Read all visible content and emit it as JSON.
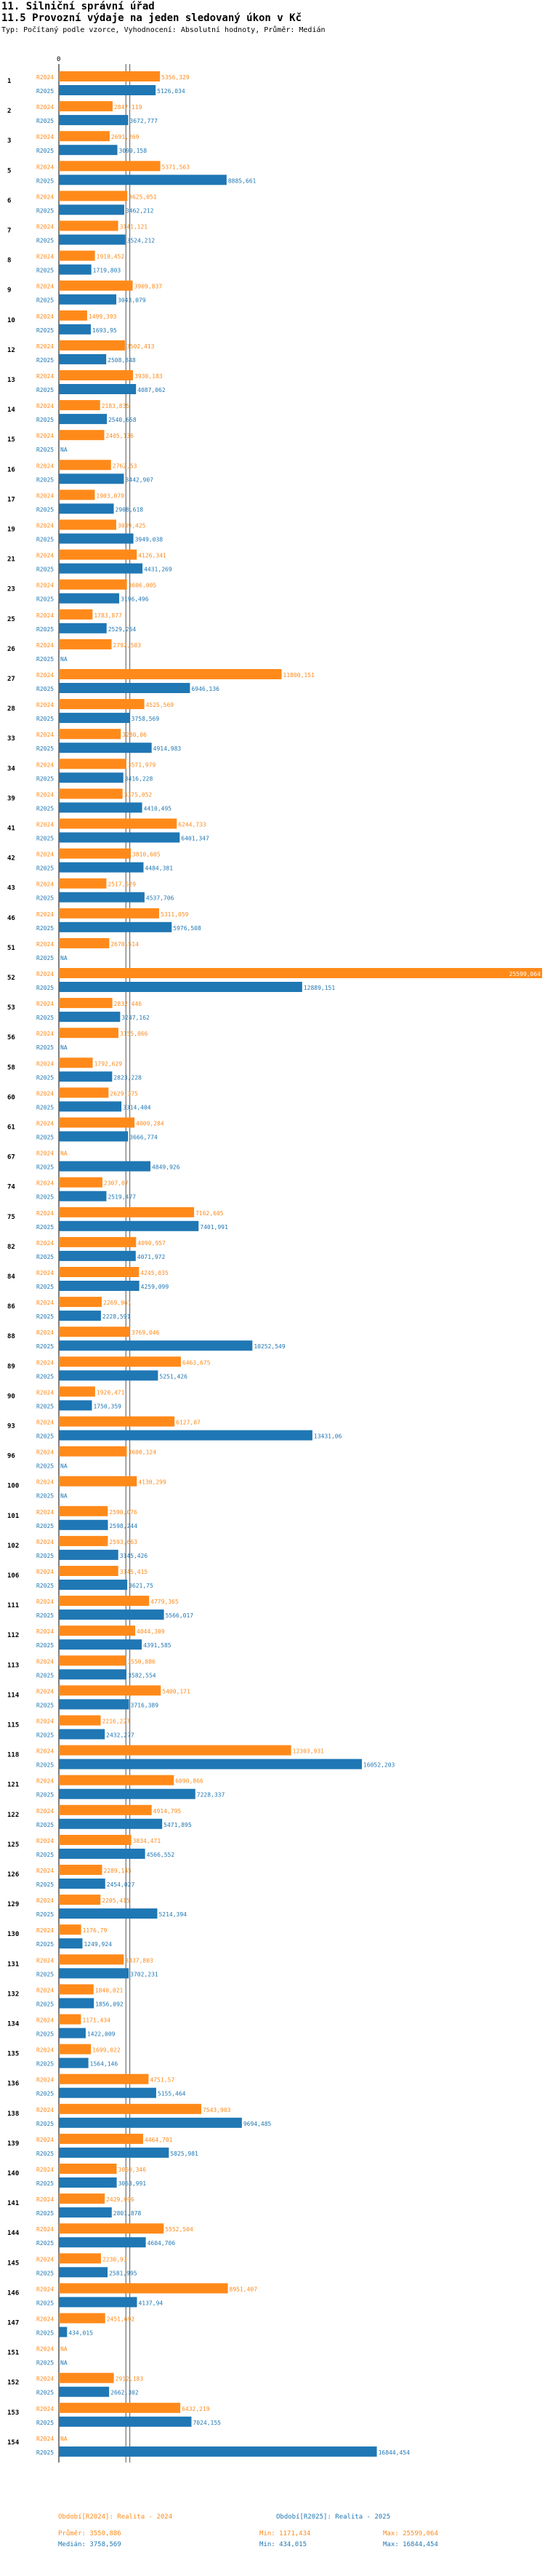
{
  "header": {
    "title1": "11. Silniční správní úřad",
    "title2": "11.5 Provozní výdaje na jeden sledovaný úkon v Kč",
    "subtitle": "Typ: Počítaný podle vzorce, Vyhodnocení: Absolutní hodnoty, Průměr: Medián"
  },
  "colors": {
    "series2024": "#ff8a1a",
    "series2025": "#1f77b4",
    "guide": "#555555"
  },
  "legend": {
    "s2024_title": "Období[R2024]: Realita - 2024",
    "s2025_title": "Období[R2025]: Realita - 2025",
    "s2024_mean": "Průměr: 3550,886",
    "s2024_min": "Min: 1171,434",
    "s2024_max": "Max: 25599,064",
    "s2025_median": "Medián: 3758,569",
    "s2025_min": "Min: 434,015",
    "s2025_max": "Max: 16844,454"
  },
  "chart_data": {
    "type": "bar",
    "orientation": "horizontal",
    "axis_zero_label": "0",
    "series_names": [
      "R2024",
      "R2025"
    ],
    "xlim": [
      0,
      25599.064
    ],
    "reference_lines": [
      3550.886,
      3758.569
    ],
    "rows": [
      {
        "id": "1",
        "r2024": "5356,329",
        "r2025": "5126,034"
      },
      {
        "id": "2",
        "r2024": "2847,119",
        "r2025": "3672,777"
      },
      {
        "id": "3",
        "r2024": "2691,269",
        "r2025": "3099,158"
      },
      {
        "id": "5",
        "r2024": "5371,563",
        "r2025": "8885,661"
      },
      {
        "id": "6",
        "r2024": "3625,051",
        "r2025": "3462,212"
      },
      {
        "id": "7",
        "r2024": "3141,121",
        "r2025": "3524,212"
      },
      {
        "id": "8",
        "r2024": "1910,452",
        "r2025": "1719,803"
      },
      {
        "id": "9",
        "r2024": "3909,837",
        "r2025": "3043,079"
      },
      {
        "id": "10",
        "r2024": "1499,393",
        "r2025": "1693,95"
      },
      {
        "id": "12",
        "r2024": "3502,413",
        "r2025": "2508,848"
      },
      {
        "id": "13",
        "r2024": "3930,183",
        "r2025": "4087,062"
      },
      {
        "id": "14",
        "r2024": "2183,835",
        "r2025": "2540,658"
      },
      {
        "id": "15",
        "r2024": "2405,136",
        "r2025": "NA"
      },
      {
        "id": "16",
        "r2024": "2762,53",
        "r2025": "3442,907"
      },
      {
        "id": "17",
        "r2024": "1903,079",
        "r2025": "2908,618"
      },
      {
        "id": "19",
        "r2024": "3039,425",
        "r2025": "3949,038"
      },
      {
        "id": "21",
        "r2024": "4126,341",
        "r2025": "4431,269"
      },
      {
        "id": "23",
        "r2024": "3606,005",
        "r2025": "3196,496"
      },
      {
        "id": "25",
        "r2024": "1783,877",
        "r2025": "2529,264"
      },
      {
        "id": "26",
        "r2024": "2792,503",
        "r2025": "NA"
      },
      {
        "id": "27",
        "r2024": "11800,151",
        "r2025": "6946,136"
      },
      {
        "id": "28",
        "r2024": "4525,569",
        "r2025": "3758,569"
      },
      {
        "id": "33",
        "r2024": "3280,06",
        "r2025": "4914,983"
      },
      {
        "id": "34",
        "r2024": "3571,979",
        "r2025": "3416,228"
      },
      {
        "id": "39",
        "r2024": "3375,052",
        "r2025": "4410,495"
      },
      {
        "id": "41",
        "r2024": "6244,733",
        "r2025": "6401,347"
      },
      {
        "id": "42",
        "r2024": "3810,605",
        "r2025": "4484,381"
      },
      {
        "id": "43",
        "r2024": "2517,529",
        "r2025": "4537,706"
      },
      {
        "id": "46",
        "r2024": "5311,059",
        "r2025": "5976,508"
      },
      {
        "id": "51",
        "r2024": "2670,514",
        "r2025": "NA"
      },
      {
        "id": "52",
        "r2024": "25599,064",
        "r2025": "12889,151"
      },
      {
        "id": "53",
        "r2024": "2832,446",
        "r2025": "3247,162"
      },
      {
        "id": "56",
        "r2024": "3155,066",
        "r2025": "NA"
      },
      {
        "id": "58",
        "r2024": "1792,629",
        "r2025": "2823,228"
      },
      {
        "id": "60",
        "r2024": "2629,375",
        "r2025": "3314,404"
      },
      {
        "id": "61",
        "r2024": "4009,284",
        "r2025": "3666,774"
      },
      {
        "id": "67",
        "r2024": "NA",
        "r2025": "4849,926"
      },
      {
        "id": "74",
        "r2024": "2307,07",
        "r2025": "2519,477"
      },
      {
        "id": "75",
        "r2024": "7162,605",
        "r2025": "7401,991"
      },
      {
        "id": "82",
        "r2024": "4090,957",
        "r2025": "4071,972"
      },
      {
        "id": "84",
        "r2024": "4245,035",
        "r2025": "4259,099"
      },
      {
        "id": "86",
        "r2024": "2269,961",
        "r2025": "2228,591"
      },
      {
        "id": "88",
        "r2024": "3769,046",
        "r2025": "10252,549"
      },
      {
        "id": "89",
        "r2024": "6463,675",
        "r2025": "5251,426"
      },
      {
        "id": "90",
        "r2024": "1920,471",
        "r2025": "1750,359"
      },
      {
        "id": "93",
        "r2024": "6127,07",
        "r2025": "13431,06"
      },
      {
        "id": "96",
        "r2024": "3600,124",
        "r2025": "NA"
      },
      {
        "id": "100",
        "r2024": "4130,299",
        "r2025": "NA"
      },
      {
        "id": "101",
        "r2024": "2590,076",
        "r2025": "2598,244"
      },
      {
        "id": "102",
        "r2024": "2593,663",
        "r2025": "3145,426"
      },
      {
        "id": "106",
        "r2024": "3145,415",
        "r2025": "3621,75"
      },
      {
        "id": "111",
        "r2024": "4779,365",
        "r2025": "5566,017"
      },
      {
        "id": "112",
        "r2024": "4044,309",
        "r2025": "4391,585"
      },
      {
        "id": "113",
        "r2024": "3550,886",
        "r2025": "3582,554"
      },
      {
        "id": "114",
        "r2024": "5400,171",
        "r2025": "3716,389"
      },
      {
        "id": "115",
        "r2024": "2216,227",
        "r2025": "2432,277"
      },
      {
        "id": "118",
        "r2024": "12303,931",
        "r2025": "16052,203"
      },
      {
        "id": "121",
        "r2024": "6090,866",
        "r2025": "7228,337"
      },
      {
        "id": "122",
        "r2024": "4914,795",
        "r2025": "5471,895"
      },
      {
        "id": "125",
        "r2024": "3834,471",
        "r2025": "4566,552"
      },
      {
        "id": "126",
        "r2024": "2289,145",
        "r2025": "2454,027"
      },
      {
        "id": "129",
        "r2024": "2205,415",
        "r2025": "5214,394"
      },
      {
        "id": "130",
        "r2024": "1176,79",
        "r2025": "1249,924"
      },
      {
        "id": "131",
        "r2024": "3437,803",
        "r2025": "3702,231"
      },
      {
        "id": "132",
        "r2024": "1840,021",
        "r2025": "1856,092"
      },
      {
        "id": "134",
        "r2024": "1171,434",
        "r2025": "1422,009"
      },
      {
        "id": "135",
        "r2024": "1699,022",
        "r2025": "1564,146"
      },
      {
        "id": "136",
        "r2024": "4751,57",
        "r2025": "5155,464"
      },
      {
        "id": "138",
        "r2024": "7543,903",
        "r2025": "9694,485"
      },
      {
        "id": "139",
        "r2024": "4464,701",
        "r2025": "5825,981"
      },
      {
        "id": "140",
        "r2024": "3060,346",
        "r2025": "3063,991"
      },
      {
        "id": "141",
        "r2024": "2429,096",
        "r2025": "2801,878"
      },
      {
        "id": "144",
        "r2024": "5552,504",
        "r2025": "4604,706"
      },
      {
        "id": "145",
        "r2024": "2230,93",
        "r2025": "2581,995"
      },
      {
        "id": "146",
        "r2024": "8951,407",
        "r2025": "4137,94"
      },
      {
        "id": "147",
        "r2024": "2451,692",
        "r2025": "434,015"
      },
      {
        "id": "151",
        "r2024": "NA",
        "r2025": "NA"
      },
      {
        "id": "152",
        "r2024": "2912,183",
        "r2025": "2662,302"
      },
      {
        "id": "153",
        "r2024": "6432,219",
        "r2025": "7024,155"
      },
      {
        "id": "154",
        "r2024": "NA",
        "r2025": "16844,454"
      }
    ]
  }
}
